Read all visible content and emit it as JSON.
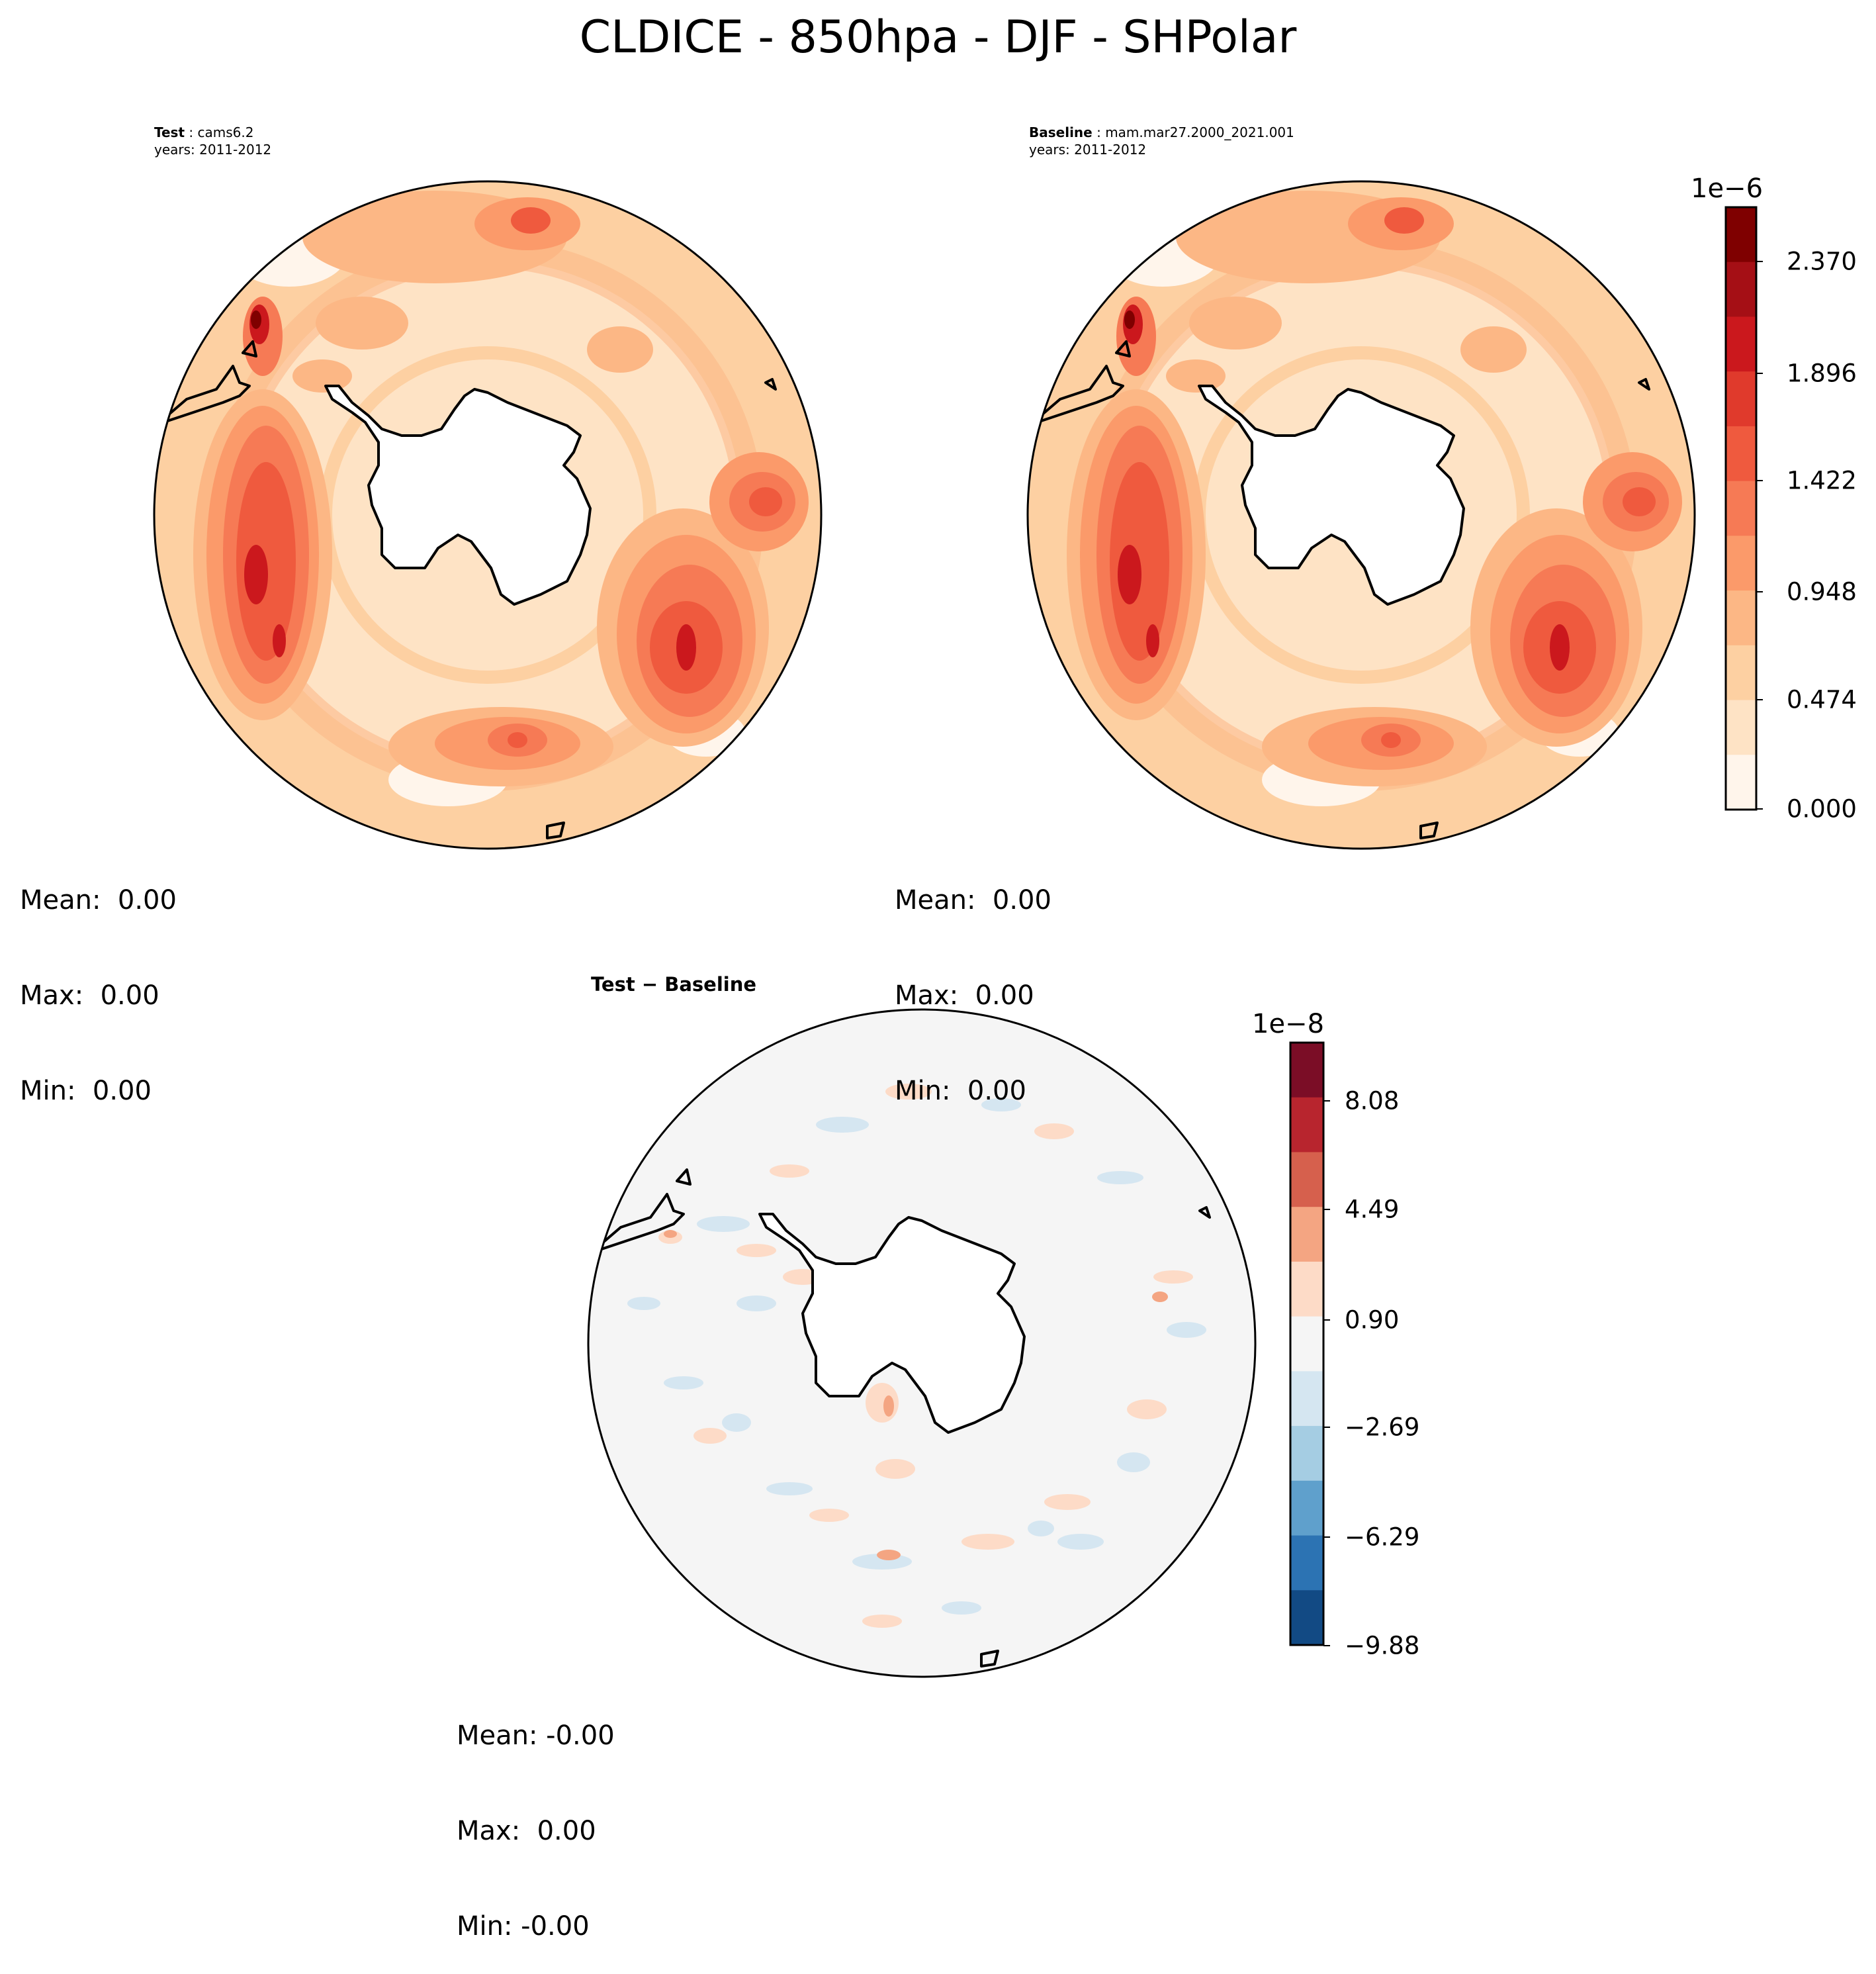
{
  "title": "CLDICE - 850hpa - DJF - SHPolar",
  "panels": {
    "test": {
      "label": "Test",
      "case": "cams6.2",
      "years": "years: 2011-2012",
      "stats": {
        "mean": "Mean:  0.00",
        "max": "Max:  0.00",
        "min": "Min:  0.00"
      }
    },
    "baseline": {
      "label": "Baseline",
      "case": "mam.mar27.2000_2021.001",
      "years": "years: 2011-2012",
      "stats": {
        "mean": "Mean:  0.00",
        "max": "Max:  0.00",
        "min": "Min:  0.00"
      }
    },
    "diff": {
      "title": "Test − Baseline",
      "stats": {
        "mean": "Mean: -0.00",
        "max": "Max:  0.00",
        "min": "Min: -0.00"
      }
    }
  },
  "colorbars": {
    "main": {
      "scale": "1e−6",
      "ticks": [
        "2.370",
        "1.896",
        "1.422",
        "0.948",
        "0.474",
        "0.000"
      ],
      "colors_top_to_bottom": [
        "#7f0000",
        "#a50f15",
        "#cb181d",
        "#e03a2c",
        "#ef5a3e",
        "#f67a55",
        "#fb9a6a",
        "#fcb785",
        "#fdd0a2",
        "#fee3c5",
        "#fff5eb"
      ]
    },
    "diff": {
      "scale": "1e−8",
      "ticks": [
        "8.08",
        "4.49",
        "0.90",
        "−2.69",
        "−6.29",
        "−9.88"
      ],
      "colors_top_to_bottom": [
        "#7b0d26",
        "#b8252e",
        "#d6604d",
        "#f4a582",
        "#fddbc7",
        "#f5f5f5",
        "#d5e6f1",
        "#a5cde3",
        "#5fa0cc",
        "#2c73b3",
        "#124a84"
      ]
    }
  },
  "map": {
    "projection": "South polar stereographic",
    "region": "SHPolar",
    "field": "CLDICE",
    "level": "850hpa",
    "season": "DJF"
  }
}
